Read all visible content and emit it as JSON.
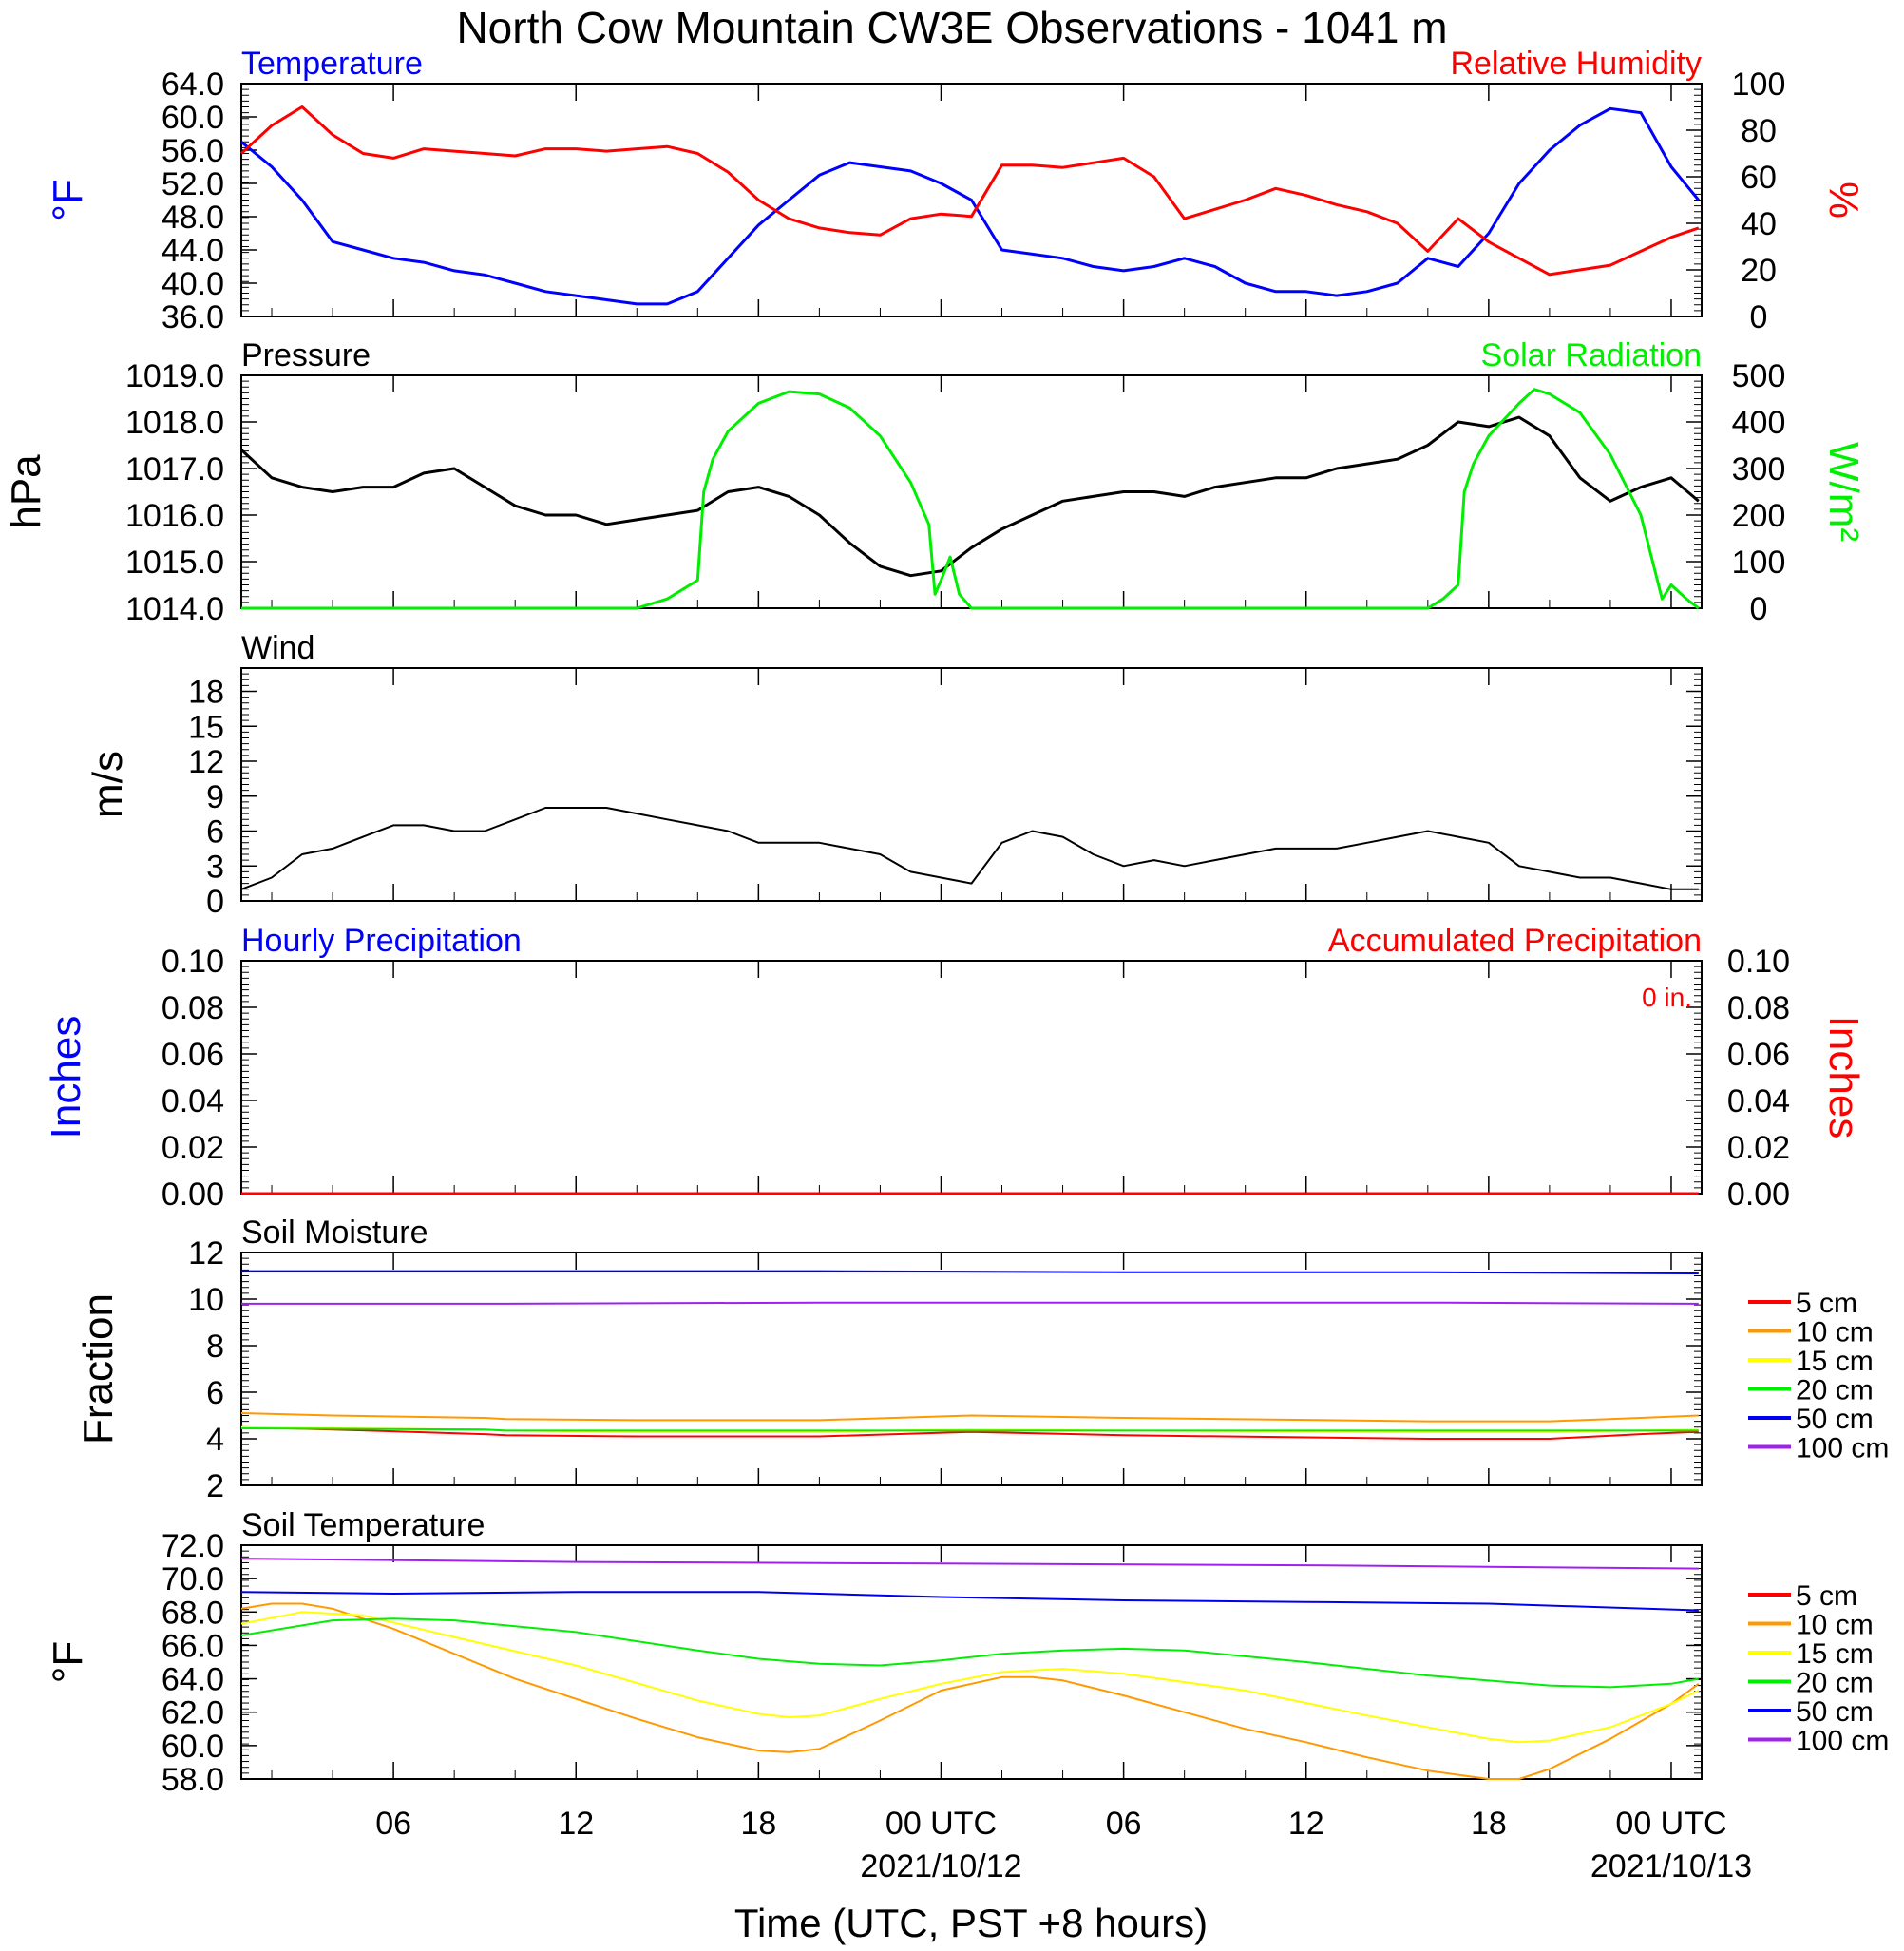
{
  "title": "North Cow Mountain CW3E Observations - 1041 m",
  "xaxis": {
    "label": "Time (UTC, PST +8 hours)",
    "ticks": [
      {
        "h": 6,
        "label": "06"
      },
      {
        "h": 12,
        "label": "12"
      },
      {
        "h": 18,
        "label": "18"
      },
      {
        "h": 24,
        "label": "00 UTC",
        "date": "2021/10/12"
      },
      {
        "h": 30,
        "label": "06"
      },
      {
        "h": 36,
        "label": "12"
      },
      {
        "h": 42,
        "label": "18"
      },
      {
        "h": 48,
        "label": "00 UTC",
        "date": "2021/10/13"
      }
    ]
  },
  "colors": {
    "temperature": "#0000ff",
    "humidity": "#ff0000",
    "pressure": "#000000",
    "solar": "#00ee00",
    "wind": "#000000",
    "barb": "#ff0000",
    "precip_hourly": "#0000ff",
    "precip_accum": "#ff0000"
  },
  "depth_legend": [
    {
      "label": "5 cm",
      "color": "#ff0000"
    },
    {
      "label": "10 cm",
      "color": "#ff9900"
    },
    {
      "label": "15 cm",
      "color": "#ffff00"
    },
    {
      "label": "20 cm",
      "color": "#00ee00"
    },
    {
      "label": "50 cm",
      "color": "#0000ee"
    },
    {
      "label": "100 cm",
      "color": "#a020f0"
    }
  ],
  "chart_data": [
    {
      "type": "line",
      "panel": "temperature-humidity",
      "title_left": "Temperature",
      "title_right": "Relative Humidity",
      "ylabel_left": "°F",
      "ylabel_right": "%",
      "ylim_left": [
        36,
        64
      ],
      "ylim_right": [
        0,
        100
      ],
      "yticks_left": [
        "64.0",
        "60.0",
        "56.0",
        "52.0",
        "48.0",
        "44.0",
        "40.0",
        "36.0"
      ],
      "yticks_right": [
        "100",
        "80",
        "60",
        "40",
        "20",
        "0"
      ],
      "x_hours_from": 1,
      "x_hours_to": 49,
      "series": [
        {
          "name": "Temperature",
          "axis": "left",
          "x": [
            1,
            2,
            3,
            4,
            5,
            6,
            7,
            8,
            9,
            10,
            11,
            12,
            13,
            14,
            15,
            16,
            17,
            18,
            19,
            20,
            21,
            22,
            23,
            24,
            25,
            26,
            27,
            28,
            29,
            30,
            31,
            32,
            33,
            34,
            35,
            36,
            37,
            38,
            39,
            40,
            41,
            42,
            43,
            44,
            45,
            46,
            47,
            48,
            48.9
          ],
          "y": [
            57,
            54,
            50,
            45,
            44,
            43,
            42.5,
            41.5,
            41,
            40,
            39,
            38.5,
            38,
            37.5,
            37.5,
            39,
            43,
            47,
            50,
            53,
            54.5,
            54,
            53.5,
            52,
            50,
            44,
            43.5,
            43,
            42,
            41.5,
            42,
            43,
            42,
            40,
            39,
            39,
            38.5,
            39,
            40,
            43,
            42,
            46,
            52,
            56,
            59,
            61,
            60.5,
            54,
            50
          ]
        },
        {
          "name": "Relative Humidity",
          "axis": "right",
          "x": [
            1,
            2,
            3,
            4,
            5,
            6,
            7,
            8,
            9,
            10,
            11,
            12,
            13,
            14,
            15,
            16,
            17,
            18,
            19,
            20,
            21,
            22,
            23,
            24,
            25,
            26,
            27,
            28,
            29,
            30,
            31,
            32,
            33,
            34,
            35,
            36,
            37,
            38,
            39,
            40,
            41,
            42,
            43,
            44,
            45,
            46,
            47,
            48,
            48.9
          ],
          "y": [
            70,
            82,
            90,
            78,
            70,
            68,
            72,
            71,
            70,
            69,
            72,
            72,
            71,
            72,
            73,
            70,
            62,
            50,
            42,
            38,
            36,
            35,
            42,
            44,
            43,
            65,
            65,
            64,
            66,
            68,
            60,
            42,
            46,
            50,
            55,
            52,
            48,
            45,
            40,
            28,
            42,
            32,
            25,
            18,
            20,
            22,
            28,
            34,
            38
          ]
        }
      ]
    },
    {
      "type": "line",
      "panel": "pressure-solar",
      "title_left": "Pressure",
      "title_right": "Solar Radiation",
      "ylabel_left": "hPa",
      "ylabel_right": "W/m²",
      "ylim_left": [
        1014,
        1019
      ],
      "ylim_right": [
        0,
        500
      ],
      "yticks_left": [
        "1019.0",
        "1018.0",
        "1017.0",
        "1016.0",
        "1015.0",
        "1014.0"
      ],
      "yticks_right": [
        "500",
        "400",
        "300",
        "200",
        "100",
        "0"
      ],
      "series": [
        {
          "name": "Pressure",
          "axis": "left",
          "x": [
            1,
            2,
            3,
            4,
            5,
            6,
            7,
            8,
            9,
            10,
            11,
            12,
            13,
            14,
            15,
            16,
            17,
            18,
            19,
            20,
            21,
            22,
            23,
            24,
            25,
            26,
            27,
            28,
            29,
            30,
            31,
            32,
            33,
            34,
            35,
            36,
            37,
            38,
            39,
            40,
            41,
            42,
            43,
            44,
            45,
            46,
            47,
            48,
            48.9
          ],
          "y": [
            1017.4,
            1016.8,
            1016.6,
            1016.5,
            1016.6,
            1016.6,
            1016.9,
            1017.0,
            1016.6,
            1016.2,
            1016.0,
            1016.0,
            1015.8,
            1015.9,
            1016.0,
            1016.1,
            1016.5,
            1016.6,
            1016.4,
            1016.0,
            1015.4,
            1014.9,
            1014.7,
            1014.8,
            1015.3,
            1015.7,
            1016.0,
            1016.3,
            1016.4,
            1016.5,
            1016.5,
            1016.4,
            1016.6,
            1016.7,
            1016.8,
            1016.8,
            1017.0,
            1017.1,
            1017.2,
            1017.5,
            1018.0,
            1017.9,
            1018.1,
            1017.7,
            1016.8,
            1016.3,
            1016.6,
            1016.8,
            1016.3
          ]
        },
        {
          "name": "Solar Radiation",
          "axis": "right",
          "x": [
            1,
            14,
            15,
            15.5,
            16,
            16.2,
            16.5,
            17,
            18,
            19,
            20,
            21,
            22,
            23,
            23.6,
            23.8,
            24,
            24.3,
            24.6,
            25,
            26,
            40,
            40.5,
            41,
            41.2,
            41.5,
            42,
            43,
            43.5,
            44,
            45,
            46,
            47,
            47.7,
            48,
            48.5,
            48.9
          ],
          "y": [
            0,
            0,
            20,
            40,
            60,
            250,
            320,
            380,
            440,
            465,
            460,
            430,
            370,
            270,
            180,
            30,
            60,
            110,
            30,
            0,
            0,
            0,
            20,
            50,
            250,
            310,
            370,
            440,
            470,
            460,
            420,
            330,
            200,
            20,
            50,
            20,
            0
          ]
        }
      ]
    },
    {
      "type": "line",
      "panel": "wind",
      "title_left": "Wind",
      "ylabel_left": "m/s",
      "ylim_left": [
        0,
        20
      ],
      "yticks_left": [
        "18",
        "15",
        "12",
        "9",
        "6",
        "3",
        "0"
      ],
      "series": [
        {
          "name": "Wind",
          "x": [
            1,
            2,
            3,
            4,
            5,
            6,
            7,
            8,
            9,
            10,
            11,
            12,
            13,
            14,
            15,
            16,
            17,
            18,
            19,
            20,
            21,
            22,
            23,
            24,
            25,
            26,
            27,
            28,
            29,
            30,
            31,
            32,
            33,
            34,
            35,
            36,
            37,
            38,
            39,
            40,
            41,
            42,
            43,
            44,
            45,
            46,
            47,
            48,
            48.9
          ],
          "y": [
            1,
            2,
            4,
            4.5,
            5.5,
            6.5,
            6.5,
            6,
            6,
            7,
            8,
            8,
            8,
            7.5,
            7,
            6.5,
            6,
            5,
            5,
            5,
            4.5,
            4,
            2.5,
            2,
            1.5,
            5,
            6,
            5.5,
            4,
            3,
            3.5,
            3,
            3.5,
            4,
            4.5,
            4.5,
            4.5,
            5,
            5.5,
            6,
            5.5,
            5,
            3,
            2.5,
            2,
            2,
            1.5,
            1,
            1
          ]
        }
      ]
    },
    {
      "type": "line",
      "panel": "precipitation",
      "title_left": "Hourly Precipitation",
      "title_right": "Accumulated Precipitation",
      "annotation": "0 in.",
      "ylabel_left": "Inches",
      "ylabel_right": "Inches",
      "ylim_left": [
        0,
        0.1
      ],
      "ylim_right": [
        0,
        0.1
      ],
      "yticks_left": [
        "0.10",
        "0.08",
        "0.06",
        "0.04",
        "0.02",
        "0.00"
      ],
      "yticks_right": [
        "0.10",
        "0.08",
        "0.06",
        "0.04",
        "0.02",
        "0.00"
      ],
      "series": [
        {
          "name": "Hourly Precipitation",
          "axis": "left",
          "x": [
            1,
            48.9
          ],
          "y": [
            0,
            0
          ]
        },
        {
          "name": "Accumulated Precipitation",
          "axis": "right",
          "x": [
            1,
            48.9
          ],
          "y": [
            0,
            0
          ]
        }
      ]
    },
    {
      "type": "line",
      "panel": "soil-moisture",
      "title_left": "Soil Moisture",
      "ylabel_left": "Fraction",
      "ylim_left": [
        2,
        12
      ],
      "yticks_left": [
        "12",
        "10",
        "8",
        "6",
        "4",
        "2"
      ],
      "series": [
        {
          "name": "5 cm",
          "x": [
            1,
            4,
            9,
            9.7,
            14,
            20,
            25,
            30,
            40,
            44,
            47,
            48.9
          ],
          "y": [
            4.5,
            4.4,
            4.2,
            4.15,
            4.1,
            4.1,
            4.3,
            4.15,
            4.0,
            4.0,
            4.2,
            4.3
          ]
        },
        {
          "name": "10 cm",
          "x": [
            1,
            4,
            9,
            9.7,
            14,
            20,
            25,
            30,
            40,
            44,
            47,
            48.9
          ],
          "y": [
            5.1,
            5.0,
            4.9,
            4.85,
            4.8,
            4.8,
            5.0,
            4.9,
            4.75,
            4.75,
            4.9,
            5.0
          ]
        },
        {
          "name": "15 cm",
          "x": [
            1,
            4,
            9,
            9.7,
            14,
            20,
            25,
            30,
            40,
            44,
            47,
            48.9
          ],
          "y": [
            4.5,
            4.45,
            4.4,
            4.35,
            4.3,
            4.3,
            4.4,
            4.35,
            4.3,
            4.3,
            4.35,
            4.4
          ]
        },
        {
          "name": "20 cm",
          "x": [
            1,
            9,
            9.7,
            48.9
          ],
          "y": [
            4.45,
            4.4,
            4.35,
            4.35
          ]
        },
        {
          "name": "50 cm",
          "x": [
            1,
            9,
            9.7,
            20,
            30,
            40,
            48.9
          ],
          "y": [
            11.2,
            11.2,
            11.2,
            11.2,
            11.15,
            11.15,
            11.1
          ]
        },
        {
          "name": "100 cm",
          "x": [
            1,
            9,
            9.7,
            20,
            30,
            40,
            48.9
          ],
          "y": [
            9.8,
            9.8,
            9.8,
            9.85,
            9.85,
            9.85,
            9.8
          ]
        }
      ]
    },
    {
      "type": "line",
      "panel": "soil-temperature",
      "title_left": "Soil Temperature",
      "ylabel_left": "°F",
      "ylim_left": [
        58,
        72
      ],
      "yticks_left": [
        "72.0",
        "70.0",
        "68.0",
        "66.0",
        "64.0",
        "62.0",
        "60.0",
        "58.0"
      ],
      "series": [
        {
          "name": "5 cm",
          "x": [
            1,
            48.9
          ],
          "y": [
            null,
            null
          ]
        },
        {
          "name": "10 cm",
          "x": [
            1,
            2,
            3,
            4,
            6,
            8,
            10,
            12,
            14,
            16,
            18,
            19,
            20,
            22,
            24,
            26,
            27,
            28,
            30,
            32,
            34,
            36,
            38,
            40,
            42,
            43,
            44,
            46,
            48,
            48.9
          ],
          "y": [
            68.2,
            68.5,
            68.5,
            68.2,
            67.0,
            65.5,
            64.0,
            62.8,
            61.6,
            60.5,
            59.7,
            59.6,
            59.8,
            61.5,
            63.3,
            64.1,
            64.1,
            63.9,
            63.0,
            62.0,
            61.0,
            60.2,
            59.3,
            58.5,
            57.9,
            58.0,
            58.6,
            60.4,
            62.5,
            63.7
          ]
        },
        {
          "name": "15 cm",
          "x": [
            1,
            3,
            5,
            8,
            12,
            16,
            18,
            19,
            20,
            22,
            24,
            26,
            28,
            30,
            34,
            38,
            42,
            43,
            44,
            46,
            48,
            48.9
          ],
          "y": [
            67.3,
            68.0,
            67.8,
            66.5,
            64.8,
            62.7,
            61.9,
            61.7,
            61.8,
            62.8,
            63.7,
            64.4,
            64.6,
            64.3,
            63.3,
            61.8,
            60.4,
            60.2,
            60.3,
            61.1,
            62.5,
            63.3
          ]
        },
        {
          "name": "20 cm",
          "x": [
            1,
            4,
            6,
            8,
            12,
            16,
            18,
            20,
            22,
            24,
            26,
            28,
            30,
            32,
            36,
            40,
            44,
            46,
            48,
            48.9
          ],
          "y": [
            66.6,
            67.5,
            67.6,
            67.5,
            66.8,
            65.7,
            65.2,
            64.9,
            64.8,
            65.1,
            65.5,
            65.7,
            65.8,
            65.7,
            65.0,
            64.2,
            63.6,
            63.5,
            63.7,
            64.0
          ]
        },
        {
          "name": "50 cm",
          "x": [
            1,
            6,
            12,
            18,
            24,
            30,
            36,
            42,
            48.9
          ],
          "y": [
            69.2,
            69.1,
            69.2,
            69.2,
            68.9,
            68.7,
            68.6,
            68.5,
            68.1
          ]
        },
        {
          "name": "100 cm",
          "x": [
            1,
            12,
            24,
            36,
            48.9
          ],
          "y": [
            71.2,
            71.0,
            70.9,
            70.8,
            70.6
          ]
        }
      ]
    }
  ]
}
